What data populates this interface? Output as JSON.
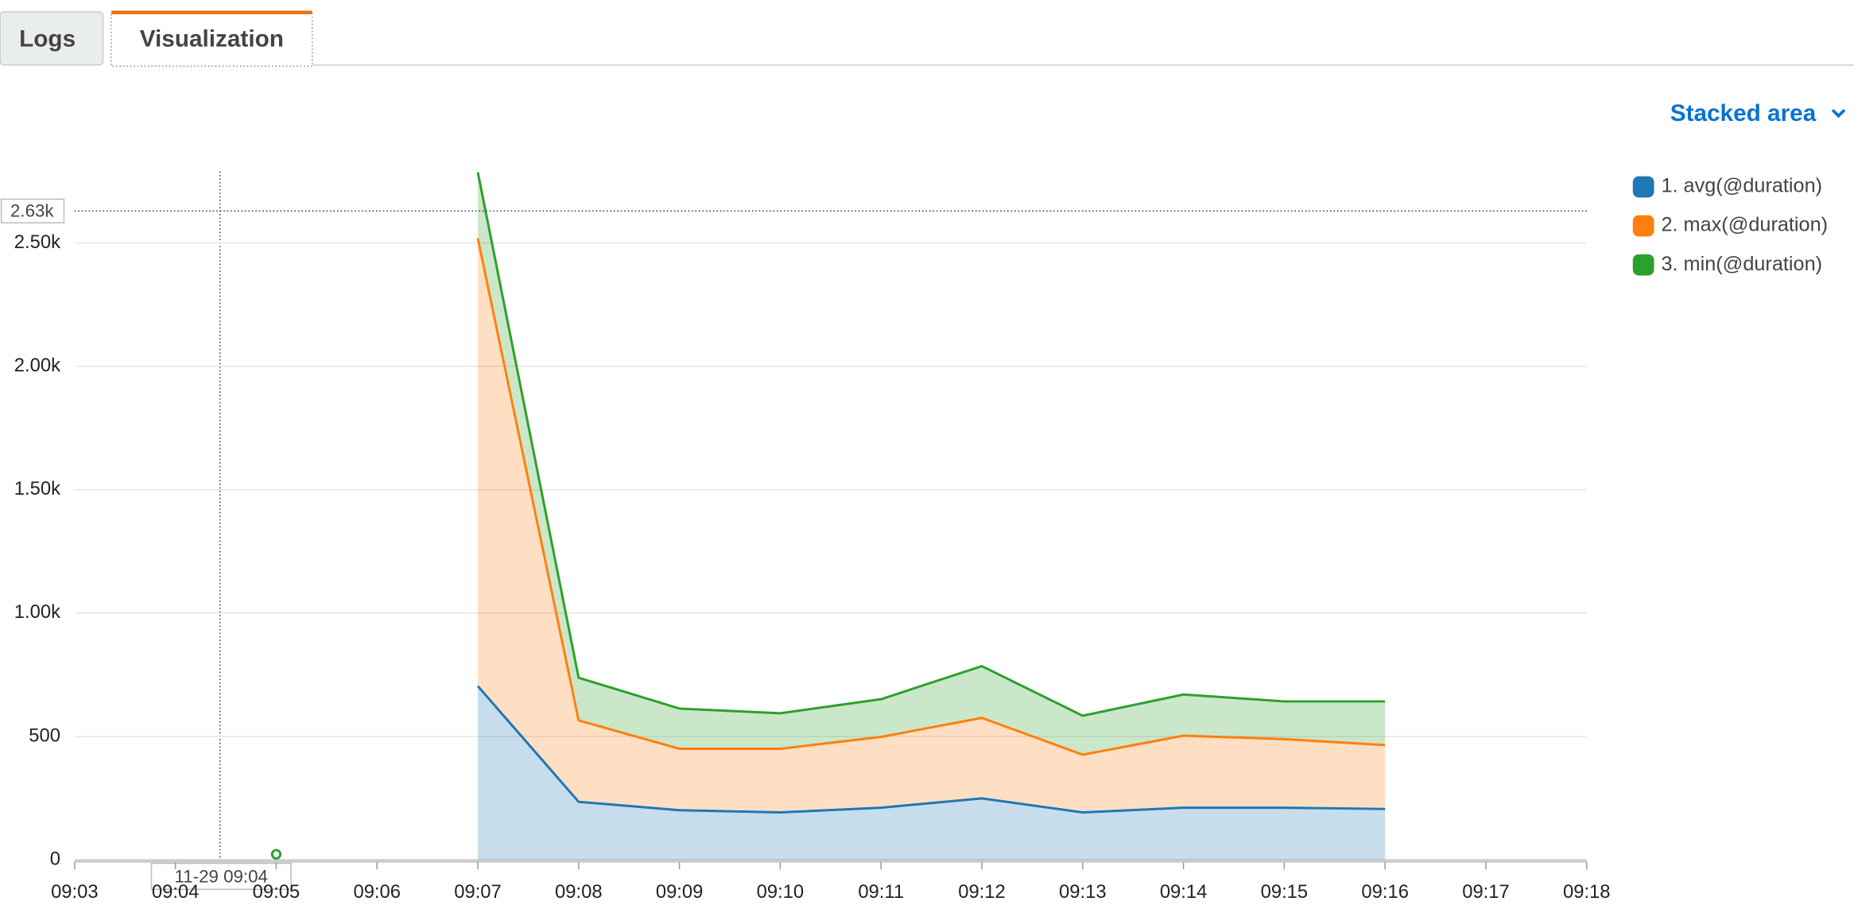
{
  "tabs": [
    "Logs",
    "Visualization"
  ],
  "view_selector": "Stacked area",
  "chart_data": {
    "type": "stacked_area",
    "categories": [
      "09:03",
      "09:04",
      "09:05",
      "09:06",
      "09:07",
      "09:08",
      "09:09",
      "09:10",
      "09:11",
      "09:12",
      "09:13",
      "09:14",
      "09:15",
      "09:16",
      "09:17",
      "09:18"
    ],
    "series": [
      {
        "name": "1. avg(@duration)",
        "color": "#1f77b4",
        "values": [
          null,
          null,
          null,
          null,
          704,
          235,
          201,
          192,
          211,
          249,
          192,
          211,
          211,
          206,
          null,
          null
        ]
      },
      {
        "name": "2. max(@duration)",
        "color": "#ff7f0e",
        "values": [
          null,
          null,
          null,
          null,
          1815,
          330,
          249,
          258,
          287,
          326,
          234,
          292,
          278,
          259,
          null,
          null
        ]
      },
      {
        "name": "3. min(@duration)",
        "color": "#2ca02c",
        "values": [
          null,
          null,
          8,
          null,
          268,
          173,
          163,
          144,
          153,
          210,
          158,
          167,
          153,
          177,
          null,
          null
        ]
      }
    ],
    "ylim": [
      0,
      2790
    ],
    "yticks": [
      0,
      500,
      {
        "value": 1000,
        "label": "1.00k"
      },
      {
        "value": 1500,
        "label": "1.50k"
      },
      {
        "value": 2000,
        "label": "2.00k"
      },
      {
        "value": 2500,
        "label": "2.50k"
      }
    ],
    "grid": true,
    "legend": "right",
    "crosshair": {
      "y": {
        "value": 2630,
        "label": "2.63k"
      },
      "x_label": "11-29 09:04"
    }
  }
}
